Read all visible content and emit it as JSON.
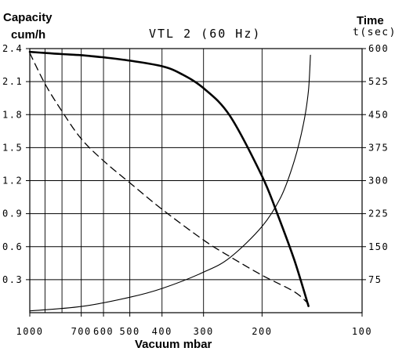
{
  "chart_data": {
    "type": "line",
    "title": "VTL 2 (60 Hz)",
    "ylabel_left": [
      "Capacity",
      "cum/h"
    ],
    "ylabel_right": [
      "Time",
      "t(sec)"
    ],
    "xlabel": "Vacuum mbar",
    "x_scale": "log",
    "xlim": [
      1000,
      100
    ],
    "x_ticks": [
      1000,
      700,
      600,
      500,
      400,
      300,
      200,
      100
    ],
    "x_gridlines": [
      1000,
      900,
      800,
      700,
      600,
      500,
      400,
      300,
      200
    ],
    "ylim_left": [
      0,
      2.4
    ],
    "y_ticks_left": [
      "2.4",
      "2.1",
      "1.8",
      "1.5",
      "1.2",
      "0.9",
      "0.6",
      "0.3"
    ],
    "ylim_right": [
      0,
      600
    ],
    "y_ticks_right": [
      "600",
      "525",
      "450",
      "375",
      "300",
      "225",
      "150",
      "75"
    ],
    "grid": true,
    "series": [
      {
        "axis": "left",
        "style": "solid-thick",
        "x": [
          1000,
          900,
          800,
          700,
          600,
          500,
          400,
          350,
          300,
          250,
          200,
          180,
          160,
          145
        ],
        "y": [
          2.37,
          2.36,
          2.35,
          2.34,
          2.32,
          2.29,
          2.24,
          2.17,
          2.04,
          1.79,
          1.24,
          0.9,
          0.48,
          0.06
        ]
      },
      {
        "axis": "left",
        "style": "dashed",
        "x": [
          1000,
          900,
          800,
          700,
          600,
          500,
          400,
          300,
          250,
          200,
          160,
          145
        ],
        "y": [
          2.36,
          2.08,
          1.83,
          1.58,
          1.38,
          1.18,
          0.94,
          0.66,
          0.51,
          0.34,
          0.19,
          0.08
        ]
      },
      {
        "axis": "right",
        "style": "solid-thin",
        "x": [
          1000,
          700,
          500,
          400,
          300,
          250,
          200,
          175,
          160,
          150,
          145,
          143
        ],
        "y": [
          4,
          14,
          35,
          55,
          92,
          125,
          196,
          265,
          345,
          430,
          505,
          585
        ]
      }
    ]
  }
}
